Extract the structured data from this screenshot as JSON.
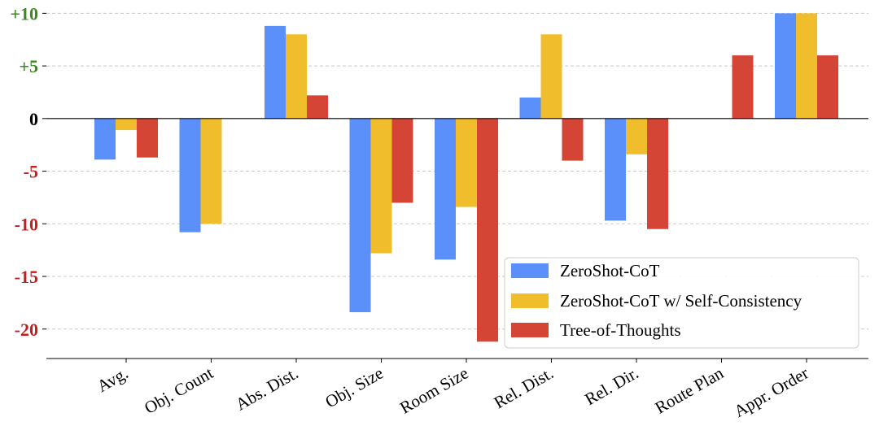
{
  "chart_data": {
    "type": "bar",
    "categories": [
      "Avg.",
      "Obj. Count",
      "Abs. Dist.",
      "Obj. Size",
      "Room Size",
      "Rel. Dist.",
      "Rel. Dir.",
      "Route Plan",
      "Appr. Order"
    ],
    "series": [
      {
        "name": "ZeroShot-CoT",
        "color": "#5b8ff9",
        "values": [
          -3.9,
          -10.8,
          8.8,
          -18.4,
          -13.4,
          2.0,
          -9.7,
          0,
          10.0
        ]
      },
      {
        "name": "ZeroShot-CoT w/ Self-Consistency",
        "color": "#f0be2d",
        "values": [
          -1.1,
          -10.0,
          8.0,
          -12.8,
          -8.4,
          8.0,
          -3.4,
          0,
          10.0
        ]
      },
      {
        "name": "Tree-of-Thoughts",
        "color": "#d44536",
        "values": [
          -3.7,
          0,
          2.2,
          -8.0,
          -21.2,
          -4.0,
          -10.5,
          6.0,
          6.0
        ]
      }
    ],
    "yticks": [
      10,
      5,
      0,
      -5,
      -10,
      -15,
      -20
    ],
    "ytick_labels": [
      "+10",
      "+5",
      "0",
      "-5",
      "-10",
      "-15",
      "-20"
    ],
    "ylim": [
      -22.8,
      10.8
    ],
    "grid": true,
    "legend_position": "bottom-right",
    "colors": {
      "positive_tick": "#3a8a1e",
      "negative_tick": "#c81e1e"
    }
  }
}
